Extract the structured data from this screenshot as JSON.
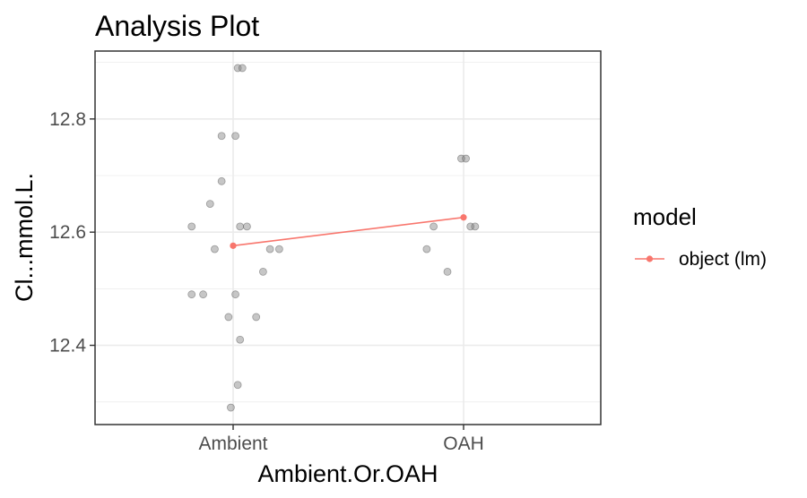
{
  "chart_data": {
    "type": "scatter",
    "title": "Analysis Plot",
    "xlabel": "Ambient.Or.OAH",
    "ylabel": "Cl...mmol.L.",
    "categories": [
      "Ambient",
      "OAH"
    ],
    "ylim": [
      12.26,
      12.92
    ],
    "y_ticks": [
      12.4,
      12.6,
      12.8
    ],
    "y_tick_labels": [
      "12.4",
      "12.6",
      "12.8"
    ],
    "grid": true,
    "legend": {
      "position": "right",
      "title": "model",
      "entries": [
        "object (lm)"
      ]
    },
    "colors": {
      "line": "#F8766D",
      "points": "#808080",
      "panel_border": "#333333",
      "grid": "#EBEBEB"
    },
    "points": [
      {
        "x": "Ambient",
        "jitter": 0.02,
        "y": 12.89
      },
      {
        "x": "Ambient",
        "jitter": 0.04,
        "y": 12.89
      },
      {
        "x": "Ambient",
        "jitter": -0.05,
        "y": 12.77
      },
      {
        "x": "Ambient",
        "jitter": 0.01,
        "y": 12.77
      },
      {
        "x": "Ambient",
        "jitter": -0.05,
        "y": 12.69
      },
      {
        "x": "Ambient",
        "jitter": -0.1,
        "y": 12.65
      },
      {
        "x": "Ambient",
        "jitter": -0.18,
        "y": 12.61
      },
      {
        "x": "Ambient",
        "jitter": 0.03,
        "y": 12.61
      },
      {
        "x": "Ambient",
        "jitter": 0.06,
        "y": 12.61
      },
      {
        "x": "Ambient",
        "jitter": -0.08,
        "y": 12.57
      },
      {
        "x": "Ambient",
        "jitter": 0.16,
        "y": 12.57
      },
      {
        "x": "Ambient",
        "jitter": 0.2,
        "y": 12.57
      },
      {
        "x": "Ambient",
        "jitter": 0.13,
        "y": 12.53
      },
      {
        "x": "Ambient",
        "jitter": -0.18,
        "y": 12.49
      },
      {
        "x": "Ambient",
        "jitter": -0.13,
        "y": 12.49
      },
      {
        "x": "Ambient",
        "jitter": 0.01,
        "y": 12.49
      },
      {
        "x": "Ambient",
        "jitter": -0.02,
        "y": 12.45
      },
      {
        "x": "Ambient",
        "jitter": 0.1,
        "y": 12.45
      },
      {
        "x": "Ambient",
        "jitter": 0.03,
        "y": 12.41
      },
      {
        "x": "Ambient",
        "jitter": 0.02,
        "y": 12.33
      },
      {
        "x": "Ambient",
        "jitter": -0.01,
        "y": 12.29
      },
      {
        "x": "OAH",
        "jitter": -0.01,
        "y": 12.73
      },
      {
        "x": "OAH",
        "jitter": 0.01,
        "y": 12.73
      },
      {
        "x": "OAH",
        "jitter": -0.13,
        "y": 12.61
      },
      {
        "x": "OAH",
        "jitter": 0.03,
        "y": 12.61
      },
      {
        "x": "OAH",
        "jitter": 0.05,
        "y": 12.61
      },
      {
        "x": "OAH",
        "jitter": -0.16,
        "y": 12.57
      },
      {
        "x": "OAH",
        "jitter": -0.07,
        "y": 12.53
      }
    ],
    "series": [
      {
        "name": "object (lm)",
        "x": [
          "Ambient",
          "OAH"
        ],
        "values": [
          12.576,
          12.626
        ]
      }
    ]
  }
}
